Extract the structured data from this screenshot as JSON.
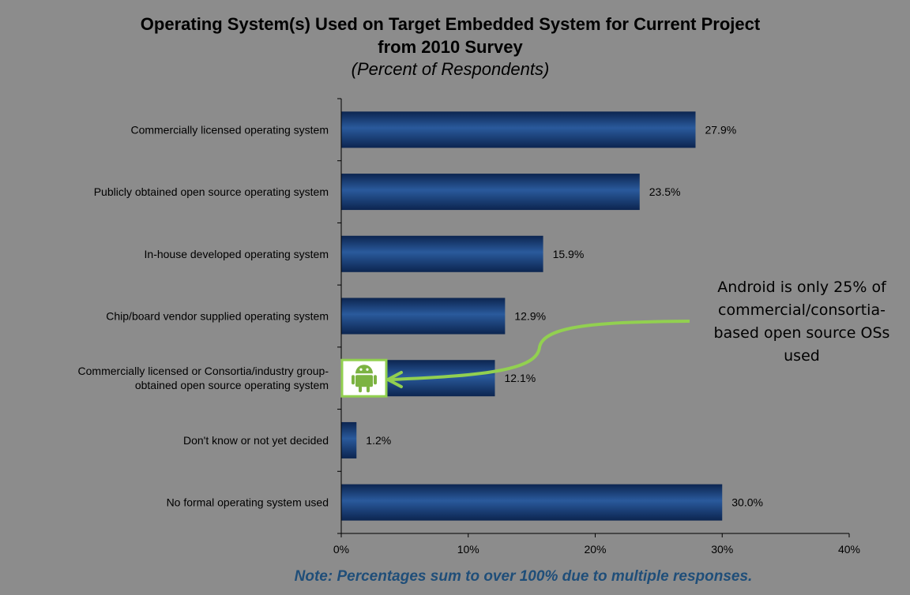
{
  "chart_data": {
    "type": "bar",
    "orientation": "horizontal",
    "title": "Operating System(s) Used on Target Embedded System for Current Project",
    "title_line2": "from 2010 Survey",
    "subtitle": "(Percent of Respondents)",
    "categories": [
      "Commercially licensed operating system",
      "Publicly obtained open source operating system",
      "In-house developed operating system",
      "Chip/board vendor supplied operating system",
      [
        "Commercially licensed or Consortia/industry group-",
        "obtained open source operating system"
      ],
      "Don't know or not yet decided",
      "No formal operating system used"
    ],
    "values": [
      27.9,
      23.5,
      15.9,
      12.9,
      12.1,
      1.2,
      30.0
    ],
    "value_labels": [
      "27.9%",
      "23.5%",
      "15.9%",
      "12.9%",
      "12.1%",
      "1.2%",
      "30.0%"
    ],
    "xlim": [
      0,
      40
    ],
    "xticks": [
      0,
      10,
      20,
      30,
      40
    ],
    "xtick_labels": [
      "0%",
      "10%",
      "20%",
      "30%",
      "40%"
    ],
    "xlabel": "",
    "ylabel": "",
    "grid": false,
    "legend": "none"
  },
  "note": "Note: Percentages sum to over 100% due to multiple responses.",
  "callout": {
    "lines": [
      "Android  is only 25% of",
      "commercial/consortia-",
      "based open source OSs",
      "used"
    ]
  },
  "colors": {
    "background": "#8c8c8c",
    "bar": "#1f4e8c",
    "bar_dark": "#0f2a55",
    "arrow": "#92d050",
    "note_text": "#1f4e79"
  }
}
